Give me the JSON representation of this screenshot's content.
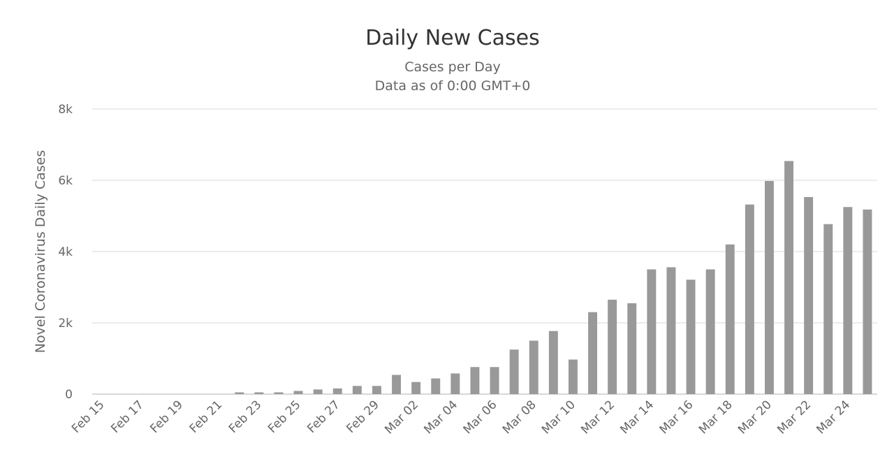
{
  "chart_data": {
    "type": "bar",
    "title": "Daily New Cases",
    "subtitle_lines": [
      "Cases per Day",
      "Data as of 0:00 GMT+0"
    ],
    "ylabel": "Novel Coronavirus Daily Cases",
    "xlabel": "",
    "ylim": [
      0,
      8000
    ],
    "yticks": [
      {
        "value": 0,
        "label": "0"
      },
      {
        "value": 2000,
        "label": "2k"
      },
      {
        "value": 4000,
        "label": "4k"
      },
      {
        "value": 6000,
        "label": "6k"
      },
      {
        "value": 8000,
        "label": "8k"
      }
    ],
    "grid": true,
    "legend": "none",
    "bar_color": "#999999",
    "categories": [
      "Feb 15",
      "Feb 16",
      "Feb 17",
      "Feb 18",
      "Feb 19",
      "Feb 20",
      "Feb 21",
      "Feb 22",
      "Feb 23",
      "Feb 24",
      "Feb 25",
      "Feb 26",
      "Feb 27",
      "Feb 28",
      "Feb 29",
      "Mar 01",
      "Mar 02",
      "Mar 03",
      "Mar 04",
      "Mar 05",
      "Mar 06",
      "Mar 07",
      "Mar 08",
      "Mar 09",
      "Mar 10",
      "Mar 11",
      "Mar 12",
      "Mar 13",
      "Mar 14",
      "Mar 15",
      "Mar 16",
      "Mar 17",
      "Mar 18",
      "Mar 19",
      "Mar 20",
      "Mar 21",
      "Mar 22",
      "Mar 23",
      "Mar 24",
      "Mar 25"
    ],
    "x_tick_labels": [
      "Feb 15",
      "Feb 17",
      "Feb 19",
      "Feb 21",
      "Feb 23",
      "Feb 25",
      "Feb 27",
      "Feb 29",
      "Mar 02",
      "Mar 04",
      "Mar 06",
      "Mar 08",
      "Mar 10",
      "Mar 12",
      "Mar 14",
      "Mar 16",
      "Mar 18",
      "Mar 20",
      "Mar 22",
      "Mar 24"
    ],
    "values": [
      0,
      0,
      0,
      0,
      0,
      0,
      0,
      50,
      50,
      50,
      90,
      130,
      160,
      230,
      230,
      540,
      340,
      440,
      580,
      760,
      760,
      1250,
      1500,
      1770,
      970,
      2300,
      2650,
      2550,
      3500,
      3560,
      3210,
      3500,
      4200,
      5320,
      5980,
      6540,
      5530,
      4770,
      5250,
      5180
    ]
  }
}
